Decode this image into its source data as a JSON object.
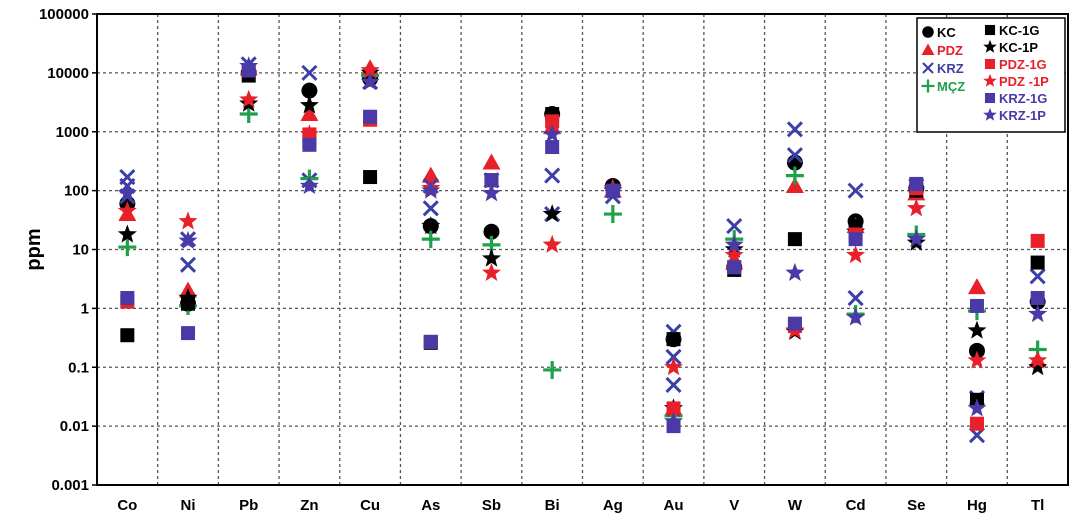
{
  "chart_data": {
    "type": "scatter",
    "y_scale": "log",
    "ylim": [
      0.001,
      100000
    ],
    "ylabel": "ppm",
    "xlabel": "",
    "title": "",
    "grid": true,
    "legend_position": "top-right",
    "y_ticks": [
      "0.001",
      "0.01",
      "0.1",
      "1",
      "10",
      "100",
      "1000",
      "10000",
      "100000"
    ],
    "categories": [
      "Co",
      "Ni",
      "Pb",
      "Zn",
      "Cu",
      "As",
      "Sb",
      "Bi",
      "Ag",
      "Au",
      "V",
      "W",
      "Cd",
      "Se",
      "Hg",
      "Tl"
    ],
    "legend_col1": [
      "KC",
      "PDZ",
      "KRZ",
      "MÇZ"
    ],
    "legend_col2": [
      "KC-1G",
      "KC-1P",
      "PDZ-1G",
      "PDZ -1P",
      "KRZ-1G",
      "KRZ-1P"
    ],
    "series": [
      {
        "name": "KC",
        "marker": "circle",
        "color": "#000000",
        "points": [
          [
            "Co",
            60
          ],
          [
            "Ni",
            1.2
          ],
          [
            "Pb",
            10000
          ],
          [
            "Zn",
            5000
          ],
          [
            "Cu",
            8000
          ],
          [
            "As",
            25
          ],
          [
            "Sb",
            20
          ],
          [
            "Bi",
            2000
          ],
          [
            "Ag",
            120
          ],
          [
            "Au",
            0.3
          ],
          [
            "V",
            5
          ],
          [
            "W",
            300
          ],
          [
            "Cd",
            30
          ],
          [
            "Se",
            110
          ],
          [
            "Hg",
            0.19
          ],
          [
            "Tl",
            1.3
          ]
        ]
      },
      {
        "name": "PDZ",
        "marker": "triangle",
        "color": "#e8202a",
        "points": [
          [
            "Co",
            40
          ],
          [
            "Ni",
            2
          ],
          [
            "Pb",
            12000
          ],
          [
            "Zn",
            2000
          ],
          [
            "Cu",
            12000
          ],
          [
            "As",
            180
          ],
          [
            "Sb",
            300
          ],
          [
            "Bi",
            1200
          ],
          [
            "Ag",
            100
          ],
          [
            "Au",
            0.02
          ],
          [
            "V",
            6
          ],
          [
            "W",
            120
          ],
          [
            "Cd",
            25
          ],
          [
            "Se",
            90
          ],
          [
            "Hg",
            2.3
          ],
          [
            "Tl",
            0.13
          ]
        ]
      },
      {
        "name": "KRZ",
        "marker": "x",
        "color": "#3b3fa8",
        "points": [
          [
            "Co",
            170
          ],
          [
            "Co",
            120
          ],
          [
            "Co",
            80
          ],
          [
            "Ni",
            15
          ],
          [
            "Ni",
            5.5
          ],
          [
            "Pb",
            14000
          ],
          [
            "Zn",
            10000
          ],
          [
            "Zn",
            150
          ],
          [
            "Cu",
            7000
          ],
          [
            "As",
            120
          ],
          [
            "As",
            50
          ],
          [
            "Sb",
            150
          ],
          [
            "Bi",
            180
          ],
          [
            "Bi",
            40
          ],
          [
            "Ag",
            80
          ],
          [
            "Au",
            0.4
          ],
          [
            "Au",
            0.15
          ],
          [
            "Au",
            0.05
          ],
          [
            "V",
            25
          ],
          [
            "W",
            1100
          ],
          [
            "W",
            400
          ],
          [
            "Cd",
            100
          ],
          [
            "Cd",
            1.5
          ],
          [
            "Se",
            120
          ],
          [
            "Hg",
            0.007
          ],
          [
            "Hg",
            0.03
          ],
          [
            "Tl",
            3.5
          ]
        ]
      },
      {
        "name": "MÇZ",
        "marker": "plus",
        "color": "#1fa04a",
        "points": [
          [
            "Co",
            11
          ],
          [
            "Ni",
            1.1
          ],
          [
            "Pb",
            2000
          ],
          [
            "Zn",
            160
          ],
          [
            "Cu",
            9000
          ],
          [
            "As",
            15
          ],
          [
            "Sb",
            12
          ],
          [
            "Bi",
            0.09
          ],
          [
            "Ag",
            40
          ],
          [
            "Au",
            0.015
          ],
          [
            "V",
            15
          ],
          [
            "W",
            180
          ],
          [
            "Cd",
            0.8
          ],
          [
            "Se",
            18
          ],
          [
            "Hg",
            0.9
          ],
          [
            "Tl",
            0.2
          ]
        ]
      },
      {
        "name": "KC-1G",
        "marker": "square",
        "color": "#000000",
        "points": [
          [
            "Co",
            0.35
          ],
          [
            "Ni",
            1.2
          ],
          [
            "Pb",
            9000
          ],
          [
            "Zn",
            700
          ],
          [
            "Cu",
            170
          ],
          [
            "As",
            0.26
          ],
          [
            "Sb",
            150
          ],
          [
            "Bi",
            2000
          ],
          [
            "Ag",
            100
          ],
          [
            "Au",
            0.3
          ],
          [
            "V",
            4.5
          ],
          [
            "W",
            15
          ],
          [
            "Cd",
            25
          ],
          [
            "Se",
            100
          ],
          [
            "Hg",
            0.028
          ],
          [
            "Tl",
            6
          ]
        ]
      },
      {
        "name": "KC-1P",
        "marker": "star",
        "color": "#000000",
        "points": [
          [
            "Co",
            18
          ],
          [
            "Ni",
            1.5
          ],
          [
            "Pb",
            3000
          ],
          [
            "Zn",
            2800
          ],
          [
            "Cu",
            10000
          ],
          [
            "As",
            25
          ],
          [
            "Sb",
            7
          ],
          [
            "Bi",
            40
          ],
          [
            "Ag",
            100
          ],
          [
            "Au",
            0.02
          ],
          [
            "V",
            10
          ],
          [
            "W",
            0.4
          ],
          [
            "Cd",
            20
          ],
          [
            "Se",
            13
          ],
          [
            "Hg",
            0.42
          ],
          [
            "Tl",
            0.1
          ]
        ]
      },
      {
        "name": "PDZ-1G",
        "marker": "square",
        "color": "#e8202a",
        "points": [
          [
            "Co",
            1.3
          ],
          [
            "Pb",
            11000
          ],
          [
            "Zn",
            900
          ],
          [
            "Cu",
            1600
          ],
          [
            "As",
            0.27
          ],
          [
            "Sb",
            150
          ],
          [
            "Bi",
            1500
          ],
          [
            "Au",
            0.02
          ],
          [
            "V",
            5
          ],
          [
            "W",
            0.5
          ],
          [
            "Cd",
            18
          ],
          [
            "Se",
            110
          ],
          [
            "Hg",
            0.011
          ],
          [
            "Tl",
            14
          ]
        ]
      },
      {
        "name": "PDZ -1P",
        "marker": "star",
        "color": "#e8202a",
        "points": [
          [
            "Co",
            45
          ],
          [
            "Ni",
            30
          ],
          [
            "Pb",
            3500
          ],
          [
            "Zn",
            900
          ],
          [
            "Cu",
            11000
          ],
          [
            "As",
            110
          ],
          [
            "Sb",
            4
          ],
          [
            "Bi",
            12
          ],
          [
            "Ag",
            110
          ],
          [
            "Au",
            0.1
          ],
          [
            "V",
            8
          ],
          [
            "W",
            0.42
          ],
          [
            "Cd",
            8
          ],
          [
            "Se",
            50
          ],
          [
            "Hg",
            0.13
          ],
          [
            "Tl",
            0.13
          ]
        ]
      },
      {
        "name": "KRZ-1G",
        "marker": "square",
        "color": "#4a3aa8",
        "points": [
          [
            "Co",
            1.5
          ],
          [
            "Ni",
            0.38
          ],
          [
            "Pb",
            11000
          ],
          [
            "Zn",
            600
          ],
          [
            "Cu",
            1800
          ],
          [
            "As",
            0.27
          ],
          [
            "Sb",
            150
          ],
          [
            "Bi",
            550
          ],
          [
            "Ag",
            100
          ],
          [
            "Au",
            0.01
          ],
          [
            "V",
            5
          ],
          [
            "W",
            0.55
          ],
          [
            "Cd",
            15
          ],
          [
            "Se",
            130
          ],
          [
            "Hg",
            1.1
          ],
          [
            "Tl",
            1.5
          ]
        ]
      },
      {
        "name": "KRZ-1P",
        "marker": "star",
        "color": "#4a3aa8",
        "points": [
          [
            "Co",
            90
          ],
          [
            "Ni",
            14
          ],
          [
            "Pb",
            13000
          ],
          [
            "Zn",
            120
          ],
          [
            "Cu",
            7000
          ],
          [
            "As",
            100
          ],
          [
            "Sb",
            90
          ],
          [
            "Bi",
            900
          ],
          [
            "Ag",
            100
          ],
          [
            "Au",
            0.012
          ],
          [
            "V",
            12
          ],
          [
            "W",
            4
          ],
          [
            "Cd",
            0.7
          ],
          [
            "Se",
            15
          ],
          [
            "Hg",
            0.02
          ],
          [
            "Tl",
            0.8
          ]
        ]
      }
    ]
  }
}
